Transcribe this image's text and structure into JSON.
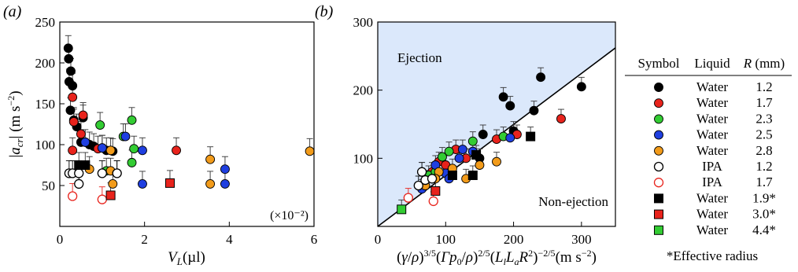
{
  "colors": {
    "black": "#000000",
    "red": "#e8231c",
    "green": "#33cc33",
    "blue": "#1f3fe0",
    "orange": "#f29b1a",
    "ejection_region": "#dbe8fb"
  },
  "chart_data": [
    {
      "type": "scatter",
      "panel_label": "(a)",
      "title": "",
      "xlabel": "V_L(µl)",
      "ylabel": "|a_cr| (m s^-2)",
      "xlim": [
        0,
        6
      ],
      "ylim": [
        0,
        250
      ],
      "x_ticks": [
        0,
        2,
        4,
        6
      ],
      "y_ticks": [
        50,
        100,
        150,
        200,
        250
      ],
      "x_scale_note": "(×10⁻²)",
      "grid": false,
      "series": [
        {
          "color": "black",
          "marker": "filled-circle",
          "points": [
            [
              0.2,
              218
            ],
            [
              0.21,
              205
            ],
            [
              0.22,
              177
            ],
            [
              0.26,
              190
            ],
            [
              0.3,
              172
            ],
            [
              0.25,
              142
            ],
            [
              0.33,
              130
            ],
            [
              0.4,
              122
            ],
            [
              0.5,
              103
            ],
            [
              0.55,
              133
            ],
            [
              0.7,
              100
            ],
            [
              0.8,
              98
            ],
            [
              1.0,
              96
            ],
            [
              1.1,
              93
            ],
            [
              1.25,
              92
            ]
          ]
        },
        {
          "color": "red",
          "marker": "filled-circle",
          "points": [
            [
              0.3,
              158
            ],
            [
              0.33,
              128
            ],
            [
              0.5,
              113
            ],
            [
              0.55,
              136
            ],
            [
              0.3,
              93
            ],
            [
              0.9,
              95
            ],
            [
              2.75,
              93
            ]
          ]
        },
        {
          "color": "green",
          "marker": "filled-circle",
          "points": [
            [
              0.95,
              124
            ],
            [
              1.5,
              110
            ],
            [
              1.7,
              130
            ],
            [
              1.75,
              95
            ],
            [
              1.7,
              78
            ],
            [
              1.1,
              68
            ]
          ]
        },
        {
          "color": "blue",
          "marker": "filled-circle",
          "points": [
            [
              0.6,
              103
            ],
            [
              1.0,
              96
            ],
            [
              1.55,
              110
            ],
            [
              1.95,
              93
            ],
            [
              1.95,
              52
            ],
            [
              3.9,
              70
            ],
            [
              3.9,
              52
            ]
          ]
        },
        {
          "color": "orange",
          "marker": "filled-circle",
          "points": [
            [
              0.7,
              70
            ],
            [
              1.2,
              93
            ],
            [
              1.2,
              68
            ],
            [
              1.25,
              52
            ],
            [
              1.35,
              65
            ],
            [
              3.55,
              82
            ],
            [
              3.55,
              52
            ],
            [
              5.9,
              92
            ]
          ]
        },
        {
          "color": "black",
          "marker": "open-circle",
          "points": [
            [
              0.22,
              65
            ],
            [
              0.3,
              65
            ],
            [
              0.45,
              65
            ],
            [
              1.0,
              65
            ],
            [
              1.35,
              65
            ],
            [
              0.45,
              52
            ]
          ]
        },
        {
          "color": "red",
          "marker": "open-circle",
          "points": [
            [
              0.3,
              37
            ],
            [
              1.0,
              33
            ]
          ]
        },
        {
          "color": "black",
          "marker": "filled-square",
          "points": [
            [
              0.45,
              75
            ],
            [
              0.6,
              75
            ]
          ]
        },
        {
          "color": "red",
          "marker": "filled-square",
          "points": [
            [
              1.2,
              38
            ],
            [
              2.6,
              53
            ]
          ]
        }
      ]
    },
    {
      "type": "scatter",
      "panel_label": "(b)",
      "title": "",
      "xlabel": "(γ/ρ)^{3/5}(Γp_0/ρ)^{2/5}(L_l L_a R^2)^{-2/5}(m s^-2)",
      "ylabel": "",
      "xlim": [
        0,
        350
      ],
      "ylim": [
        0,
        300
      ],
      "x_ticks": [
        0,
        100,
        200,
        300
      ],
      "y_ticks": [
        100,
        200,
        300
      ],
      "grid": false,
      "reference_line": {
        "x": [
          0,
          350
        ],
        "y": [
          0,
          262
        ]
      },
      "region_labels": [
        "Ejection",
        "Non-ejection"
      ],
      "series": [
        {
          "color": "black",
          "marker": "filled-circle",
          "points": [
            [
              150,
              100
            ],
            [
              155,
              135
            ],
            [
              185,
              190
            ],
            [
              195,
              177
            ],
            [
              200,
              140
            ],
            [
              230,
              170
            ],
            [
              240,
              219
            ],
            [
              300,
              205
            ]
          ]
        },
        {
          "color": "red",
          "marker": "filled-circle",
          "points": [
            [
              80,
              80
            ],
            [
              90,
              95
            ],
            [
              100,
              90
            ],
            [
              115,
              113
            ],
            [
              130,
              100
            ],
            [
              175,
              128
            ],
            [
              205,
              135
            ],
            [
              270,
              158
            ]
          ]
        },
        {
          "color": "green",
          "marker": "filled-circle",
          "points": [
            [
              75,
              75
            ],
            [
              85,
              80
            ],
            [
              95,
              102
            ],
            [
              105,
              110
            ],
            [
              140,
              125
            ],
            [
              185,
              132
            ],
            [
              70,
              60
            ]
          ]
        },
        {
          "color": "blue",
          "marker": "filled-circle",
          "points": [
            [
              65,
              55
            ],
            [
              85,
              90
            ],
            [
              100,
              78
            ],
            [
              120,
              100
            ],
            [
              125,
              113
            ],
            [
              140,
              110
            ],
            [
              195,
              130
            ],
            [
              105,
              70
            ]
          ]
        },
        {
          "color": "orange",
          "marker": "filled-circle",
          "points": [
            [
              70,
              60
            ],
            [
              90,
              80
            ],
            [
              110,
              85
            ],
            [
              130,
              70
            ],
            [
              150,
              90
            ],
            [
              175,
              95
            ],
            [
              85,
              70
            ]
          ]
        },
        {
          "color": "black",
          "marker": "open-circle",
          "points": [
            [
              60,
              60
            ],
            [
              65,
              80
            ],
            [
              70,
              68
            ],
            [
              80,
              70
            ]
          ]
        },
        {
          "color": "red",
          "marker": "open-circle",
          "points": [
            [
              45,
              42
            ],
            [
              82,
              37
            ]
          ]
        },
        {
          "color": "black",
          "marker": "filled-square",
          "points": [
            [
              110,
              75
            ],
            [
              140,
              75
            ],
            [
              145,
              105
            ],
            [
              225,
              132
            ]
          ]
        },
        {
          "color": "red",
          "marker": "filled-square",
          "points": [
            [
              85,
              52
            ]
          ]
        },
        {
          "color": "green",
          "marker": "filled-square",
          "points": [
            [
              35,
              25
            ]
          ]
        }
      ]
    }
  ],
  "legend": {
    "headers": [
      "Symbol",
      "Liquid",
      "R (mm)"
    ],
    "rows": [
      {
        "color": "black",
        "marker": "filled-circle",
        "liquid": "Water",
        "r": "1.2"
      },
      {
        "color": "red",
        "marker": "filled-circle",
        "liquid": "Water",
        "r": "1.7"
      },
      {
        "color": "green",
        "marker": "filled-circle",
        "liquid": "Water",
        "r": "2.3"
      },
      {
        "color": "blue",
        "marker": "filled-circle",
        "liquid": "Water",
        "r": "2.5"
      },
      {
        "color": "orange",
        "marker": "filled-circle",
        "liquid": "Water",
        "r": "2.8"
      },
      {
        "color": "black",
        "marker": "open-circle",
        "liquid": "IPA",
        "r": "1.2"
      },
      {
        "color": "red",
        "marker": "open-circle",
        "liquid": "IPA",
        "r": "1.7"
      },
      {
        "color": "black",
        "marker": "filled-square",
        "liquid": "Water",
        "r": "1.9*"
      },
      {
        "color": "red",
        "marker": "filled-square",
        "liquid": "Water",
        "r": "3.0*"
      },
      {
        "color": "green",
        "marker": "filled-square",
        "liquid": "Water",
        "r": "4.4*"
      }
    ],
    "footnote": "*Effective radius"
  }
}
